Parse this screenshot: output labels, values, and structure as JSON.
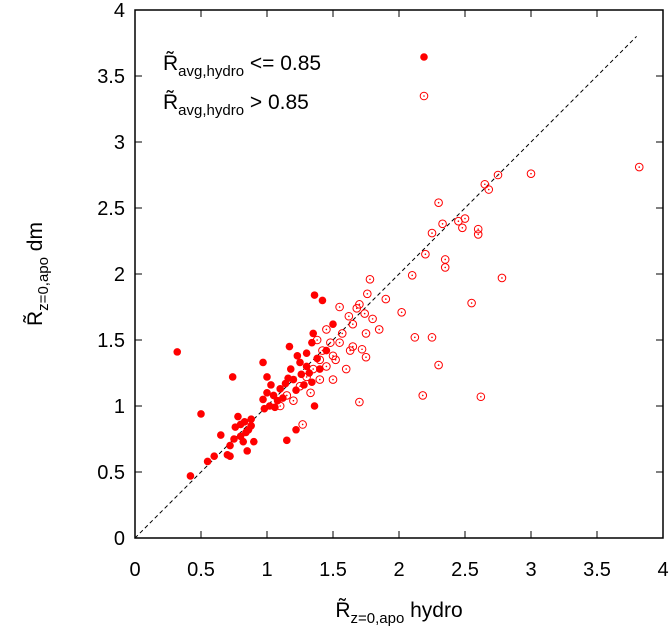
{
  "chart_data": {
    "type": "scatter",
    "title": "",
    "xlabel": {
      "main": "R̃",
      "sub": "z=0,apo",
      "suffix": " hydro"
    },
    "ylabel": {
      "main": "R̃",
      "sub": "z=0,apo",
      "suffix": " dm"
    },
    "xlim": [
      0,
      4
    ],
    "ylim": [
      0,
      4
    ],
    "xticks": [
      "0",
      "0.5",
      "1",
      "1.5",
      "2",
      "2.5",
      "3",
      "3.5",
      "4"
    ],
    "yticks": [
      "0",
      "0.5",
      "1",
      "1.5",
      "2",
      "2.5",
      "3",
      "3.5",
      "4"
    ],
    "grid": false,
    "legend_position": "top-left",
    "reference_line": {
      "style": "dashed",
      "color": "#000000",
      "x": [
        0,
        3.8
      ],
      "y": [
        0,
        3.8
      ]
    },
    "series": [
      {
        "name": {
          "main": "R̃",
          "sub": "avg,hydro",
          "suffix": " <= 0.85"
        },
        "marker": "filled-circle",
        "color": "#ff0000",
        "points": [
          [
            0.32,
            1.41
          ],
          [
            0.42,
            0.47
          ],
          [
            0.5,
            0.94
          ],
          [
            0.55,
            0.58
          ],
          [
            0.6,
            0.62
          ],
          [
            0.65,
            0.78
          ],
          [
            0.7,
            0.63
          ],
          [
            0.72,
            0.7
          ],
          [
            0.72,
            0.62
          ],
          [
            0.74,
            1.22
          ],
          [
            0.75,
            0.75
          ],
          [
            0.76,
            0.84
          ],
          [
            0.78,
            0.92
          ],
          [
            0.8,
            0.77
          ],
          [
            0.8,
            0.86
          ],
          [
            0.82,
            0.73
          ],
          [
            0.83,
            0.88
          ],
          [
            0.84,
            0.8
          ],
          [
            0.85,
            0.66
          ],
          [
            0.86,
            0.82
          ],
          [
            0.88,
            0.85
          ],
          [
            0.88,
            0.9
          ],
          [
            0.9,
            0.73
          ],
          [
            0.97,
            1.33
          ],
          [
            0.97,
            1.05
          ],
          [
            0.98,
            0.98
          ],
          [
            1.0,
            1.1
          ],
          [
            1.0,
            1.22
          ],
          [
            1.02,
            1.0
          ],
          [
            1.03,
            1.16
          ],
          [
            1.05,
            1.08
          ],
          [
            1.06,
            0.99
          ],
          [
            1.08,
            1.04
          ],
          [
            1.1,
            1.13
          ],
          [
            1.12,
            1.06
          ],
          [
            1.14,
            1.17
          ],
          [
            1.15,
            0.74
          ],
          [
            1.16,
            1.21
          ],
          [
            1.17,
            1.45
          ],
          [
            1.18,
            1.28
          ],
          [
            1.2,
            1.2
          ],
          [
            1.22,
            1.12
          ],
          [
            1.22,
            0.82
          ],
          [
            1.23,
            1.38
          ],
          [
            1.25,
            1.33
          ],
          [
            1.26,
            1.24
          ],
          [
            1.28,
            1.16
          ],
          [
            1.3,
            1.3
          ],
          [
            1.3,
            1.4
          ],
          [
            1.32,
            1.25
          ],
          [
            1.34,
            1.48
          ],
          [
            1.35,
            1.55
          ],
          [
            1.36,
            1.84
          ],
          [
            1.38,
            1.36
          ],
          [
            1.4,
            1.28
          ],
          [
            1.42,
            1.8
          ],
          [
            1.45,
            1.42
          ],
          [
            1.5,
            1.62
          ],
          [
            1.36,
            1.0
          ],
          [
            1.34,
            1.18
          ]
        ]
      },
      {
        "name": {
          "main": "R̃",
          "sub": "avg,hydro",
          "suffix": " > 0.85"
        },
        "marker": "open-circle",
        "color": "#ff0000",
        "points": [
          [
            1.1,
            1.0
          ],
          [
            1.15,
            1.08
          ],
          [
            1.2,
            1.04
          ],
          [
            1.25,
            1.15
          ],
          [
            1.27,
            0.86
          ],
          [
            1.3,
            1.22
          ],
          [
            1.33,
            1.1
          ],
          [
            1.35,
            1.28
          ],
          [
            1.38,
            1.5
          ],
          [
            1.4,
            1.2
          ],
          [
            1.4,
            1.35
          ],
          [
            1.42,
            1.42
          ],
          [
            1.45,
            1.3
          ],
          [
            1.45,
            1.58
          ],
          [
            1.48,
            1.48
          ],
          [
            1.5,
            1.2
          ],
          [
            1.5,
            1.38
          ],
          [
            1.52,
            1.35
          ],
          [
            1.55,
            1.48
          ],
          [
            1.55,
            1.75
          ],
          [
            1.57,
            1.55
          ],
          [
            1.6,
            1.28
          ],
          [
            1.62,
            1.68
          ],
          [
            1.63,
            1.42
          ],
          [
            1.65,
            1.45
          ],
          [
            1.65,
            1.62
          ],
          [
            1.68,
            1.74
          ],
          [
            1.7,
            1.03
          ],
          [
            1.7,
            1.77
          ],
          [
            1.72,
            1.43
          ],
          [
            1.74,
            1.7
          ],
          [
            1.75,
            1.55
          ],
          [
            1.75,
            1.37
          ],
          [
            1.76,
            1.85
          ],
          [
            1.78,
            1.96
          ],
          [
            1.8,
            1.66
          ],
          [
            1.85,
            1.58
          ],
          [
            1.9,
            1.81
          ],
          [
            2.02,
            1.71
          ],
          [
            2.1,
            1.99
          ],
          [
            2.12,
            1.52
          ],
          [
            2.18,
            1.08
          ],
          [
            2.2,
            2.15
          ],
          [
            2.25,
            1.52
          ],
          [
            2.25,
            2.31
          ],
          [
            2.3,
            2.54
          ],
          [
            2.3,
            1.31
          ],
          [
            2.33,
            2.38
          ],
          [
            2.35,
            2.11
          ],
          [
            2.35,
            2.05
          ],
          [
            2.45,
            2.4
          ],
          [
            2.48,
            2.35
          ],
          [
            2.5,
            2.42
          ],
          [
            2.55,
            1.78
          ],
          [
            2.6,
            2.34
          ],
          [
            2.6,
            2.3
          ],
          [
            2.62,
            1.07
          ],
          [
            2.65,
            2.68
          ],
          [
            2.68,
            2.64
          ],
          [
            2.75,
            2.75
          ],
          [
            2.78,
            1.97
          ],
          [
            3.0,
            2.76
          ],
          [
            3.82,
            2.81
          ]
        ]
      }
    ]
  }
}
